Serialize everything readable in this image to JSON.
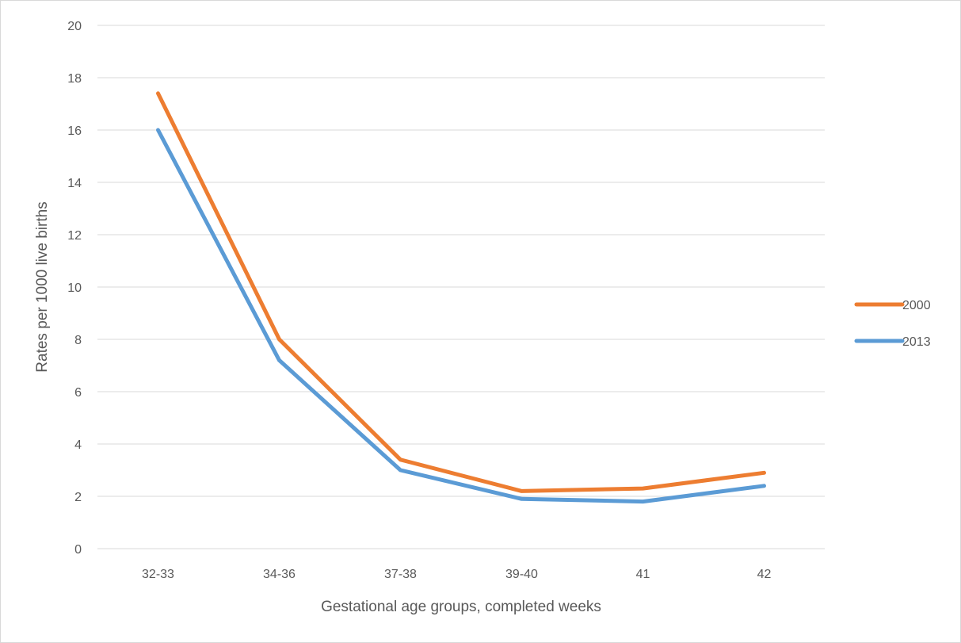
{
  "chart_data": {
    "type": "line",
    "title": "",
    "xlabel": "Gestational age groups, completed weeks",
    "ylabel": "Rates per 1000 live births",
    "categories": [
      "32-33",
      "34-36",
      "37-38",
      "39-40",
      "41",
      "42"
    ],
    "ylim": [
      0,
      20
    ],
    "yticks": [
      0,
      2,
      4,
      6,
      8,
      10,
      12,
      14,
      16,
      18,
      20
    ],
    "grid": true,
    "legend_position": "right",
    "series": [
      {
        "name": "2000",
        "color": "#ed7d31",
        "values": [
          17.4,
          8.0,
          3.4,
          2.2,
          2.3,
          2.9
        ]
      },
      {
        "name": "2013",
        "color": "#5b9bd5",
        "values": [
          16.0,
          7.2,
          3.0,
          1.9,
          1.8,
          2.4
        ]
      }
    ]
  }
}
